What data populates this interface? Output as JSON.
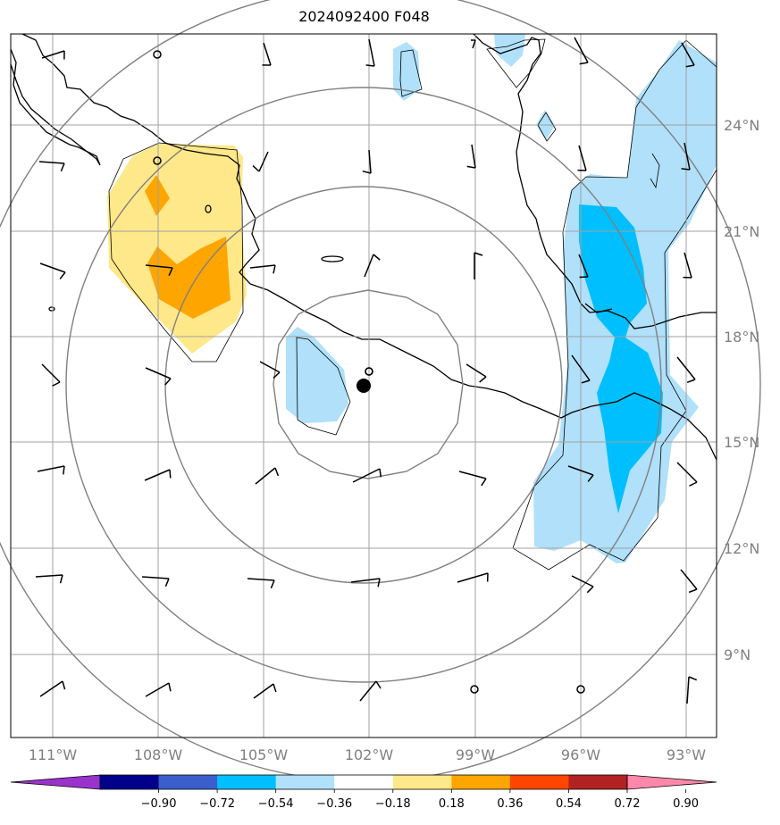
{
  "title": "2024092400 F048",
  "map": {
    "x_labels": [
      "111°W",
      "108°W",
      "105°W",
      "102°W",
      "99°W",
      "96°W",
      "93°W"
    ],
    "y_labels": [
      "24°N",
      "21°N",
      "18°N",
      "15°N",
      "12°N",
      "9°N"
    ],
    "storm_center": {
      "lon": -102.2,
      "lat": 16.6
    },
    "contour_rings": 4
  },
  "colorbar": {
    "levels": [
      "−0.90",
      "−0.72",
      "−0.54",
      "−0.36",
      "−0.18",
      "0.18",
      "0.36",
      "0.54",
      "0.72",
      "0.90"
    ],
    "colors": [
      "#9933cc",
      "#00008b",
      "#3a5fcd",
      "#00bfff",
      "#b0e0fa",
      "#ffffff",
      "#ffe88a",
      "#ffa500",
      "#ff4500",
      "#b22222",
      "#ff88aa"
    ]
  },
  "colors": {
    "light_blue": "#b0e0fa",
    "blue": "#00bfff",
    "light_yellow": "#ffe88a",
    "orange": "#ffa500",
    "grid": "#a0a0a0",
    "rings": "#808080"
  }
}
